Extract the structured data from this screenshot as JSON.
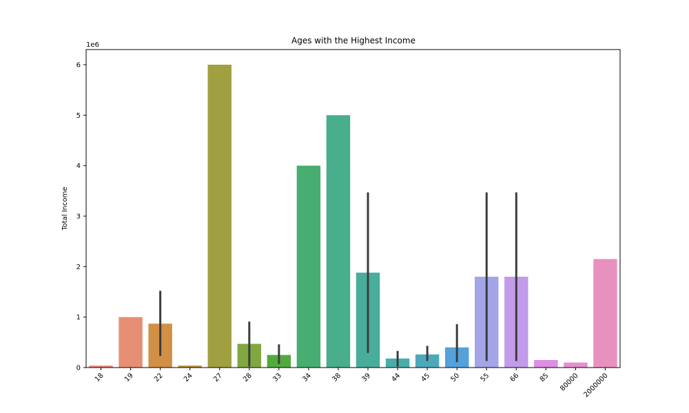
{
  "chart_data": {
    "type": "bar",
    "title": "Ages with the Highest Income",
    "xlabel": "",
    "ylabel": "Total Income",
    "y_scale_label": "1e6",
    "ylim": [
      0,
      6.3
    ],
    "yticks": [
      0,
      1,
      2,
      3,
      4,
      5,
      6
    ],
    "grid": false,
    "categories": [
      "18",
      "19",
      "22",
      "24",
      "27",
      "28",
      "33",
      "34",
      "38",
      "39",
      "44",
      "45",
      "50",
      "55",
      "66",
      "85",
      "80000",
      "2000000"
    ],
    "values": [
      0.04,
      1.0,
      0.87,
      0.04,
      6.0,
      0.47,
      0.25,
      4.0,
      5.0,
      1.88,
      0.18,
      0.26,
      0.4,
      1.8,
      1.8,
      0.15,
      0.1,
      2.15
    ],
    "error_bars": [
      null,
      null,
      [
        0.23,
        1.52
      ],
      null,
      null,
      [
        0.02,
        0.91
      ],
      [
        0.07,
        0.46
      ],
      null,
      null,
      [
        0.29,
        3.47
      ],
      [
        0.02,
        0.33
      ],
      [
        0.13,
        0.43
      ],
      [
        0.11,
        0.86
      ],
      [
        0.13,
        3.47
      ],
      [
        0.13,
        3.47
      ],
      null,
      null,
      null
    ],
    "colors": [
      "#ea8a80",
      "#e68f74",
      "#d28f46",
      "#bd9442",
      "#a0a040",
      "#81a740",
      "#52aa3f",
      "#47ad70",
      "#48ae8c",
      "#49ad9c",
      "#4aadab",
      "#4ca9bc",
      "#53a2db",
      "#a3a5e8",
      "#c29bea",
      "#de8ee3",
      "#e68fd0",
      "#e891be"
    ],
    "error_color": "#3c3c3c"
  }
}
